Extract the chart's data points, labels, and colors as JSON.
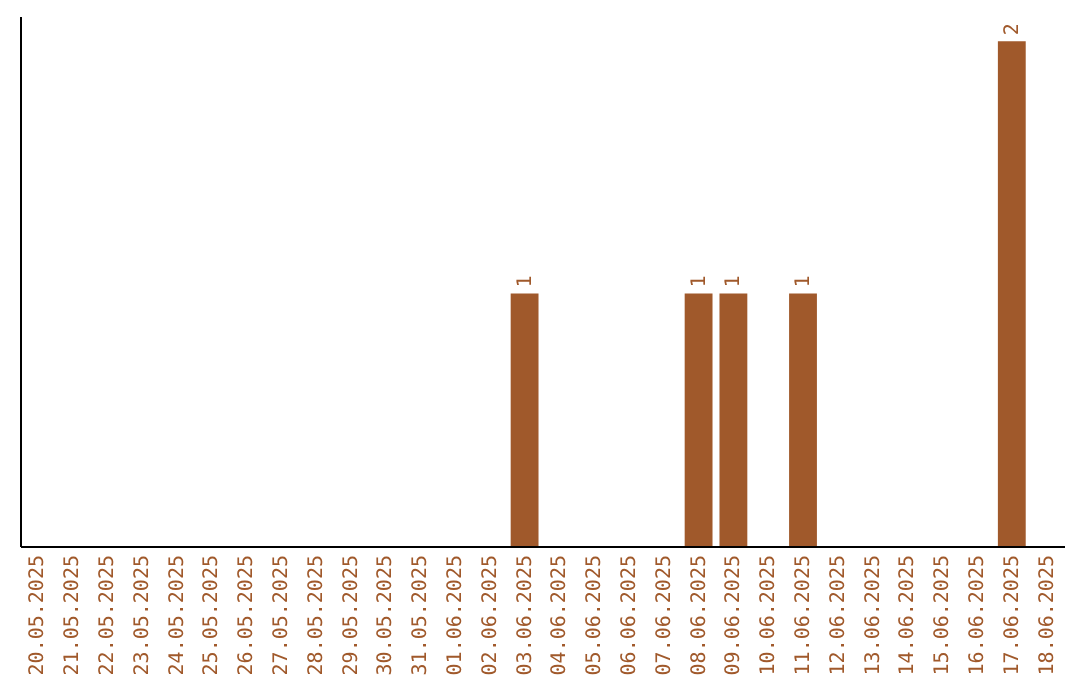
{
  "chart_data": {
    "type": "bar",
    "categories": [
      "20.05.2025",
      "21.05.2025",
      "22.05.2025",
      "23.05.2025",
      "24.05.2025",
      "25.05.2025",
      "26.05.2025",
      "27.05.2025",
      "28.05.2025",
      "29.05.2025",
      "30.05.2025",
      "31.05.2025",
      "01.06.2025",
      "02.06.2025",
      "03.06.2025",
      "04.06.2025",
      "05.06.2025",
      "06.06.2025",
      "07.06.2025",
      "08.06.2025",
      "09.06.2025",
      "10.06.2025",
      "11.06.2025",
      "12.06.2025",
      "13.06.2025",
      "14.06.2025",
      "15.06.2025",
      "16.06.2025",
      "17.06.2025",
      "18.06.2025"
    ],
    "values": [
      null,
      null,
      null,
      null,
      null,
      null,
      null,
      null,
      null,
      null,
      null,
      null,
      null,
      null,
      1,
      null,
      null,
      null,
      null,
      1,
      1,
      null,
      1,
      null,
      null,
      null,
      null,
      null,
      2,
      null
    ],
    "ylim": [
      0,
      2.1
    ],
    "tick_labels": "x",
    "value_labels": [
      null,
      null,
      null,
      null,
      null,
      null,
      null,
      null,
      null,
      null,
      null,
      null,
      null,
      null,
      "1",
      null,
      null,
      null,
      null,
      "1",
      "1",
      null,
      "1",
      null,
      null,
      null,
      null,
      null,
      "2",
      null
    ],
    "color": "#a0592b"
  }
}
